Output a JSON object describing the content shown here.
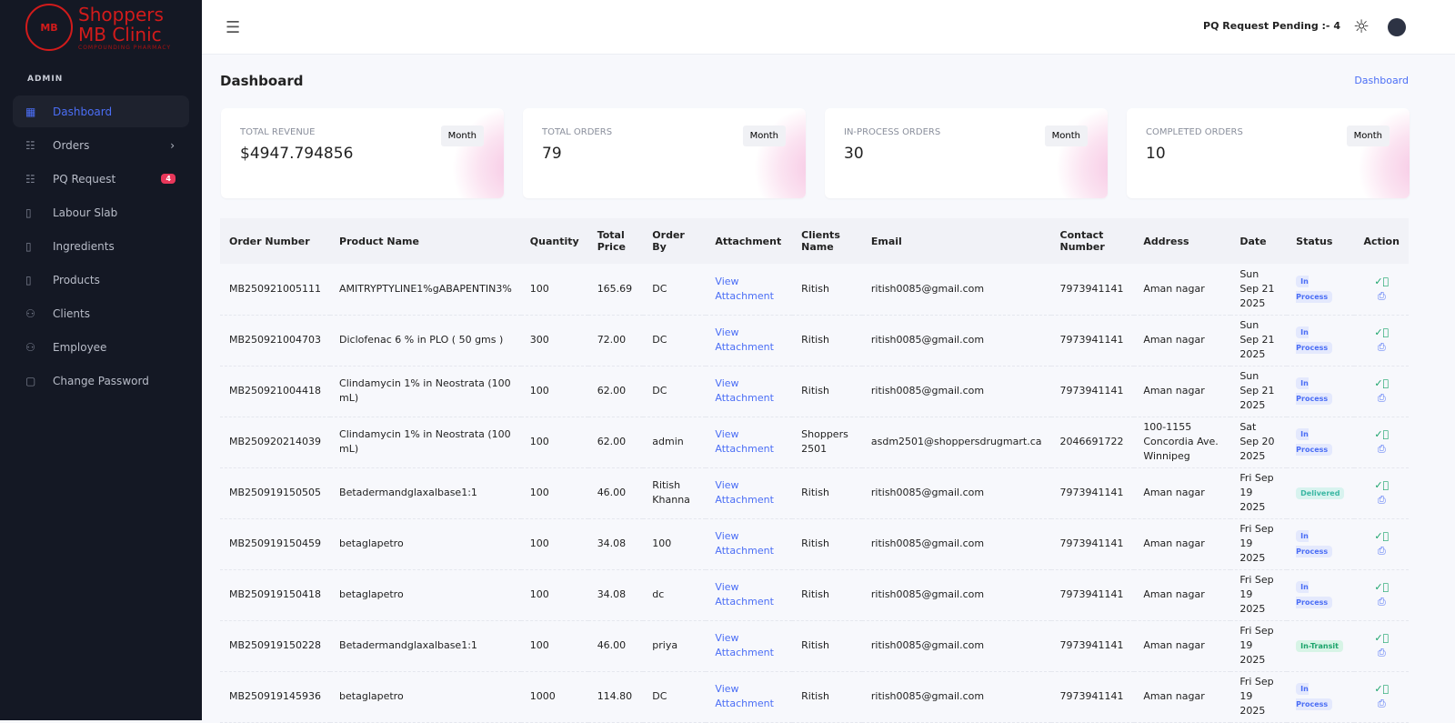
{
  "brand": {
    "name1": "Shoppers",
    "name2": "MB Clinic",
    "sub": "COMPOUNDING PHARMACY",
    "mark": "MB"
  },
  "sidebar": {
    "section": "ADMIN",
    "items": [
      {
        "label": "Dashboard",
        "icon": "dashboard-icon"
      },
      {
        "label": "Orders",
        "icon": "list-icon"
      },
      {
        "label": "PQ Request",
        "icon": "list-icon",
        "badge": "4"
      },
      {
        "label": "Labour Slab",
        "icon": "document-icon"
      },
      {
        "label": "Ingredients",
        "icon": "document-icon"
      },
      {
        "label": "Products",
        "icon": "document-icon"
      },
      {
        "label": "Clients",
        "icon": "users-icon"
      },
      {
        "label": "Employee",
        "icon": "users-icon"
      },
      {
        "label": "Change Password",
        "icon": "clipboard-icon"
      }
    ]
  },
  "topbar": {
    "pending": "PQ Request Pending :- 4"
  },
  "page": {
    "title": "Dashboard",
    "breadcrumb": "Dashboard"
  },
  "cards": [
    {
      "label": "TOTAL REVENUE",
      "value": "$4947.794856",
      "button": "Month"
    },
    {
      "label": "TOTAL ORDERS",
      "value": "79",
      "button": "Month"
    },
    {
      "label": "IN-PROCESS ORDERS",
      "value": "30",
      "button": "Month"
    },
    {
      "label": "COMPLETED ORDERS",
      "value": "10",
      "button": "Month"
    }
  ],
  "table": {
    "headers": [
      "Order Number",
      "Product Name",
      "Quantity",
      "Total Price",
      "Order By",
      "Attachment",
      "Clients Name",
      "Email",
      "Contact Number",
      "Address",
      "Date",
      "Status",
      "Action"
    ],
    "rows": [
      [
        "MB250921005111",
        "AMITRYPTYLINE1%gABAPENTIN3%",
        "100",
        "165.69",
        "DC",
        "View Attachment",
        "Ritish",
        "ritish0085@gmail.com",
        "7973941141",
        "Aman nagar",
        "Sun Sep 21 2025",
        "In Process"
      ],
      [
        "MB250921004703",
        "Diclofenac 6 % in PLO ( 50 gms )",
        "300",
        "72.00",
        "DC",
        "View Attachment",
        "Ritish",
        "ritish0085@gmail.com",
        "7973941141",
        "Aman nagar",
        "Sun Sep 21 2025",
        "In Process"
      ],
      [
        "MB250921004418",
        "Clindamycin 1% in Neostrata (100 mL)",
        "100",
        "62.00",
        "DC",
        "View Attachment",
        "Ritish",
        "ritish0085@gmail.com",
        "7973941141",
        "Aman nagar",
        "Sun Sep 21 2025",
        "In Process"
      ],
      [
        "MB250920214039",
        "Clindamycin 1% in Neostrata (100 mL)",
        "100",
        "62.00",
        "admin",
        "View Attachment",
        "Shoppers 2501",
        "asdm2501@shoppersdrugmart.ca",
        "2046691722",
        "100-1155 Concordia Ave. Winnipeg",
        "Sat Sep 20 2025",
        "In Process"
      ],
      [
        "MB250919150505",
        "Betadermandglaxalbase1:1",
        "100",
        "46.00",
        "Ritish Khanna",
        "View Attachment",
        "Ritish",
        "ritish0085@gmail.com",
        "7973941141",
        "Aman nagar",
        "Fri Sep 19 2025",
        "Delivered"
      ],
      [
        "MB250919150459",
        "betaglapetro",
        "100",
        "34.08",
        "100",
        "View Attachment",
        "Ritish",
        "ritish0085@gmail.com",
        "7973941141",
        "Aman nagar",
        "Fri Sep 19 2025",
        "In Process"
      ],
      [
        "MB250919150418",
        "betaglapetro",
        "100",
        "34.08",
        "dc",
        "View Attachment",
        "Ritish",
        "ritish0085@gmail.com",
        "7973941141",
        "Aman nagar",
        "Fri Sep 19 2025",
        "In Process"
      ],
      [
        "MB250919150228",
        "Betadermandglaxalbase1:1",
        "100",
        "46.00",
        "priya",
        "View Attachment",
        "Ritish",
        "ritish0085@gmail.com",
        "7973941141",
        "Aman nagar",
        "Fri Sep 19 2025",
        "In-Transit"
      ],
      [
        "MB250919145936",
        "betaglapetro",
        "1000",
        "114.80",
        "DC",
        "View Attachment",
        "Ritish",
        "ritish0085@gmail.com",
        "7973941141",
        "Aman nagar",
        "Fri Sep 19 2025",
        "In Process"
      ]
    ]
  },
  "colors": {
    "accent": "#4b6ef5",
    "brand": "#d21b1b",
    "sidebar": "#141824"
  }
}
